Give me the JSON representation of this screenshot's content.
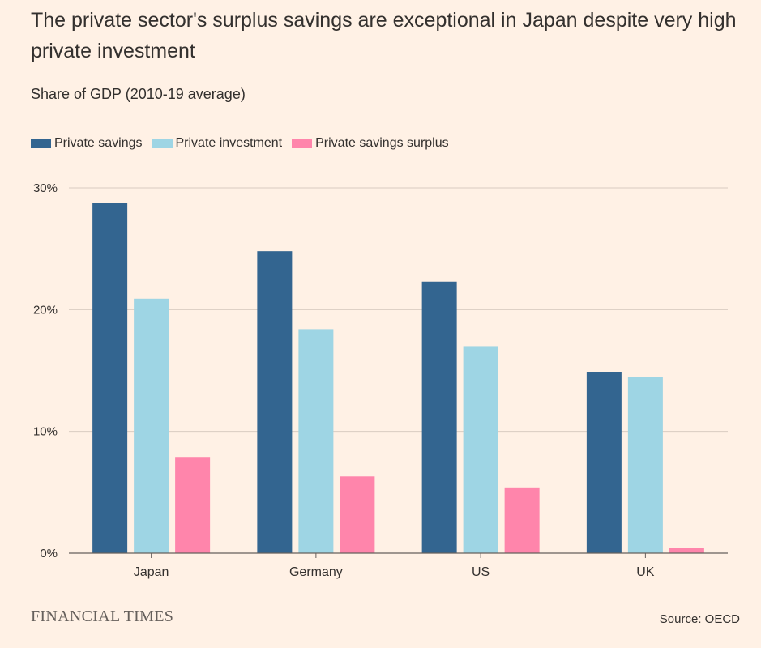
{
  "title": "The private sector's surplus savings are exceptional in Japan despite very high private investment",
  "subtitle": "Share of GDP (2010-19 average)",
  "source": "Source: OECD",
  "logo_text": "FINANCIAL TIMES",
  "colors": {
    "background": "#FFF1E5",
    "grid": "#D9CCC1",
    "axis": "#66605C",
    "text": "#33302E"
  },
  "chart_data": {
    "type": "bar",
    "categories": [
      "Japan",
      "Germany",
      "US",
      "UK"
    ],
    "series": [
      {
        "name": "Private savings",
        "color": "#336590",
        "values": [
          28.8,
          24.8,
          22.3,
          14.9
        ]
      },
      {
        "name": "Private investment",
        "color": "#9ED5E4",
        "values": [
          20.9,
          18.4,
          17.0,
          14.5
        ]
      },
      {
        "name": "Private savings surplus",
        "color": "#FF85AB",
        "values": [
          7.9,
          6.3,
          5.4,
          0.4
        ]
      }
    ],
    "y_ticks": [
      0,
      10,
      20,
      30
    ],
    "y_tick_labels": [
      "0%",
      "10%",
      "20%",
      "30%"
    ],
    "ylim": [
      0,
      30
    ],
    "grid": true,
    "legend_position": "top-left"
  }
}
